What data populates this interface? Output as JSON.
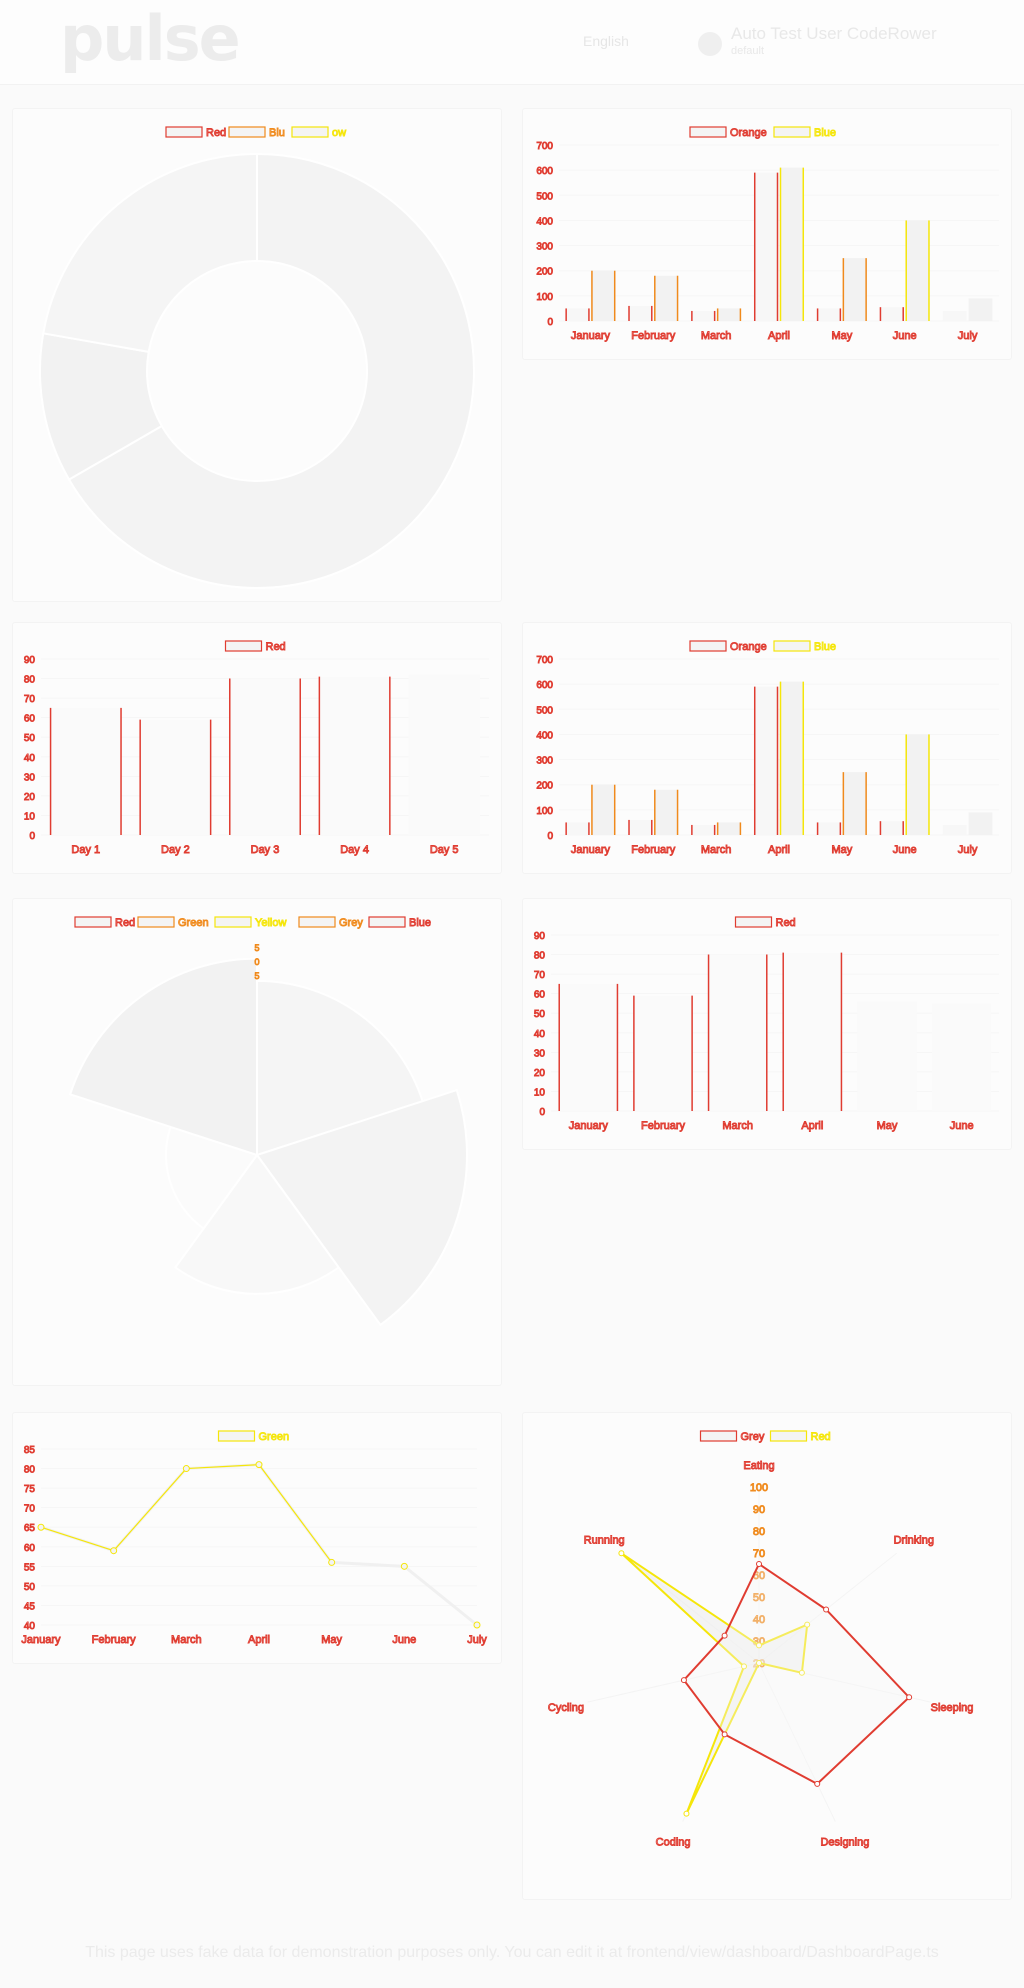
{
  "header": {
    "logo": "pulse",
    "language": "English",
    "user_name": "Auto Test User CodeRower",
    "user_org": "default"
  },
  "footer": {
    "note": "This page uses fake data for demonstration purposes only. You can edit it at frontend/view/dashboard/DashboardPage.ts"
  },
  "colors": {
    "red": "#e03c31",
    "orange": "#f08a1c",
    "yellow": "#f5e60a",
    "grey": "#f1f1f1"
  },
  "chart_data": [
    {
      "id": "doughnut",
      "type": "pie",
      "variant": "doughnut",
      "legend": [
        "Red",
        "Blu",
        "ow"
      ],
      "values": [
        300,
        50,
        100
      ]
    },
    {
      "id": "bar1",
      "type": "bar",
      "legend": [
        "Orange",
        "Blue"
      ],
      "categories": [
        "January",
        "February",
        "March",
        "April",
        "May",
        "June",
        "July"
      ],
      "yticks": [
        "0",
        "100",
        "200",
        "300",
        "400",
        "500",
        "600",
        "700"
      ],
      "ylim": [
        0,
        700
      ],
      "series": [
        {
          "name": "Orange",
          "values": [
            50,
            60,
            40,
            590,
            50,
            55,
            40
          ]
        },
        {
          "name": "Blue",
          "values": [
            200,
            180,
            50,
            610,
            250,
            400,
            90
          ]
        }
      ]
    },
    {
      "id": "bar2",
      "type": "bar",
      "legend": [
        "Red"
      ],
      "categories": [
        "Day 1",
        "Day 2",
        "Day 3",
        "Day 4",
        "Day 5"
      ],
      "yticks": [
        "0",
        "10",
        "20",
        "30",
        "40",
        "50",
        "60",
        "70",
        "80",
        "90"
      ],
      "ylim": [
        0,
        90
      ],
      "values": [
        65,
        59,
        80,
        81,
        82
      ]
    },
    {
      "id": "bar3",
      "type": "bar",
      "legend": [
        "Orange",
        "Blue"
      ],
      "categories": [
        "January",
        "February",
        "March",
        "April",
        "May",
        "June",
        "July"
      ],
      "yticks": [
        "0",
        "100",
        "200",
        "300",
        "400",
        "500",
        "600",
        "700"
      ],
      "ylim": [
        0,
        700
      ],
      "series": [
        {
          "name": "Orange",
          "values": [
            50,
            60,
            40,
            590,
            50,
            55,
            40
          ]
        },
        {
          "name": "Blue",
          "values": [
            200,
            180,
            50,
            610,
            250,
            400,
            90
          ]
        }
      ]
    },
    {
      "id": "polar",
      "type": "pie",
      "variant": "polarArea",
      "legend": [
        "Red",
        "Green",
        "Yellow",
        "Grey",
        "Blue"
      ],
      "rticks": [
        "5",
        "0",
        "5"
      ],
      "values": [
        11,
        16,
        7,
        3,
        14
      ],
      "rmax": 16
    },
    {
      "id": "bar4",
      "type": "bar",
      "legend": [
        "Red"
      ],
      "categories": [
        "January",
        "February",
        "March",
        "April",
        "May",
        "June"
      ],
      "yticks": [
        "0",
        "10",
        "20",
        "30",
        "40",
        "50",
        "60",
        "70",
        "80",
        "90"
      ],
      "ylim": [
        0,
        90
      ],
      "values": [
        65,
        59,
        80,
        81,
        56,
        55
      ]
    },
    {
      "id": "line",
      "type": "line",
      "legend": [
        "Green"
      ],
      "categories": [
        "January",
        "February",
        "March",
        "April",
        "May",
        "June",
        "July"
      ],
      "yticks": [
        "40",
        "45",
        "50",
        "55",
        "60",
        "65",
        "70",
        "75",
        "80",
        "85"
      ],
      "ylim": [
        40,
        85
      ],
      "values": [
        65,
        59,
        80,
        81,
        56,
        55,
        40
      ]
    },
    {
      "id": "radar",
      "type": "radar",
      "legend": [
        "Grey",
        "Red"
      ],
      "axes": [
        "Eating",
        "Drinking",
        "Sleeping",
        "Designing",
        "Coding",
        "Cycling",
        "Running"
      ],
      "rticks": [
        "20",
        "30",
        "40",
        "50",
        "60",
        "70",
        "80",
        "90",
        "100"
      ],
      "rlim": [
        20,
        100
      ],
      "series": [
        {
          "name": "Grey",
          "values": [
            28,
            48,
            40,
            19,
            96,
            27,
            100
          ]
        },
        {
          "name": "Red",
          "values": [
            65,
            59,
            90,
            81,
            56,
            55,
            40
          ]
        }
      ]
    }
  ]
}
